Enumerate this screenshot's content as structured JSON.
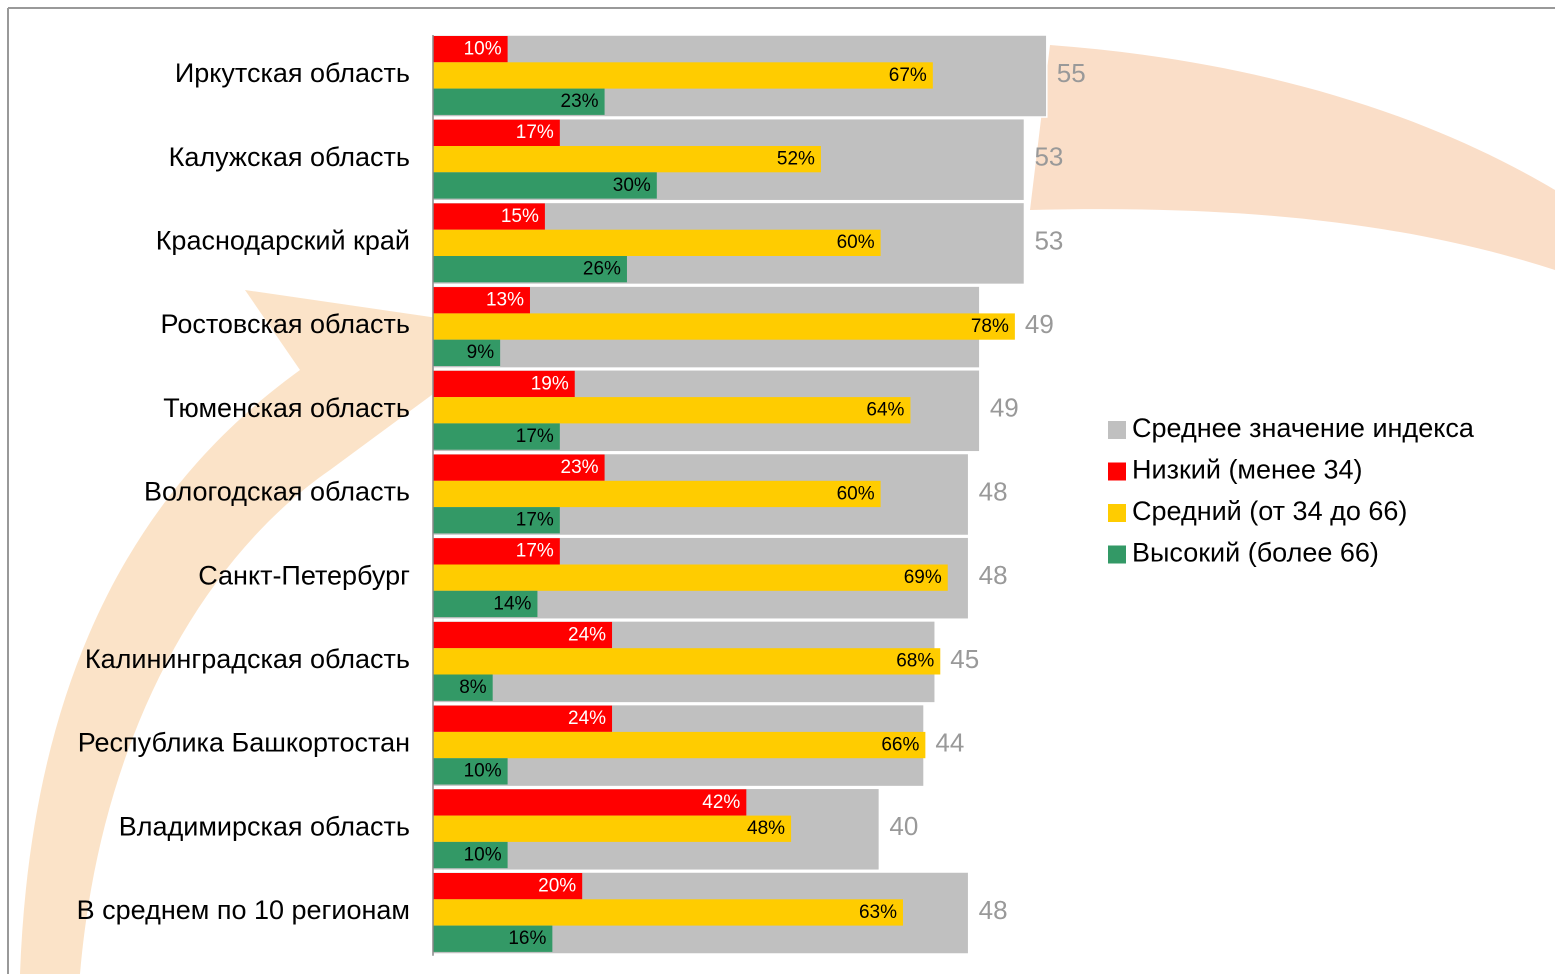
{
  "chart_data": {
    "type": "bar",
    "categories": [
      "Иркутская область",
      "Калужская область",
      "Краснодарский край",
      "Ростовская область",
      "Тюменская область",
      "Вологодская область",
      "Санкт-Петербург",
      "Калининградская область",
      "Республика Башкортостан",
      "Владимирская область",
      "В среднем по 10 регионам"
    ],
    "series": [
      {
        "name": "Среднее значение индекса",
        "color": "#c0c0c0",
        "values": [
          55,
          53,
          53,
          49,
          49,
          48,
          48,
          45,
          44,
          40,
          48
        ]
      },
      {
        "name": "Низкий (менее 34)",
        "color": "#ff0000",
        "values": [
          10,
          17,
          15,
          13,
          19,
          23,
          17,
          24,
          24,
          42,
          20
        ],
        "value_labels": [
          "10%",
          "17%",
          "15%",
          "13%",
          "19%",
          "23%",
          "17%",
          "24%",
          "24%",
          "42%",
          "20%"
        ]
      },
      {
        "name": "Средний (от 34 до 66)",
        "color": "#ffcc00",
        "values": [
          67,
          52,
          60,
          78,
          64,
          60,
          69,
          68,
          66,
          48,
          63
        ],
        "value_labels": [
          "67%",
          "52%",
          "60%",
          "78%",
          "64%",
          "60%",
          "69%",
          "68%",
          "66%",
          "48%",
          "63%"
        ]
      },
      {
        "name": "Высокий (более 66)",
        "color": "#339966",
        "values": [
          23,
          30,
          26,
          9,
          17,
          17,
          14,
          8,
          10,
          10,
          16
        ],
        "value_labels": [
          "23%",
          "30%",
          "26%",
          "9%",
          "17%",
          "17%",
          "14%",
          "8%",
          "10%",
          "10%",
          "16%"
        ]
      }
    ]
  }
}
